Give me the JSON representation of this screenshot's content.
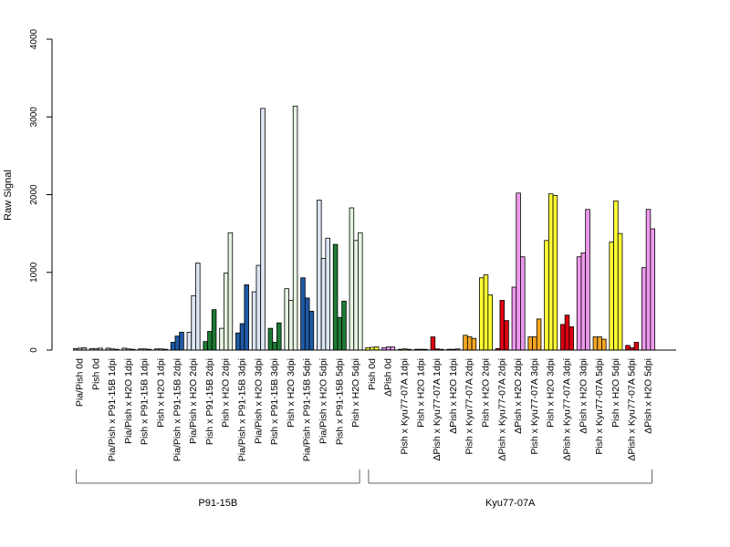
{
  "chart_data": {
    "type": "bar",
    "ylabel": "Raw Signal",
    "ylim": [
      0,
      4000
    ],
    "yticks": [
      0,
      1000,
      2000,
      3000,
      4000
    ],
    "grid": false,
    "legend": "none",
    "colors": {
      "gray": "#bebebe",
      "lightblue": "#dbe5f3",
      "darkblue": "#1f5aa6",
      "lightgreen": "#e6f4e2",
      "darkgreen": "#1e7a34",
      "yellow": "#ffff33",
      "orange": "#f5a623",
      "red": "#dd0011",
      "pink": "#ee99ee"
    },
    "categories": [
      {
        "label": "Pia/Pish 0d",
        "color": "gray",
        "values": [
          20,
          25,
          30
        ]
      },
      {
        "label": "Pish 0d",
        "color": "gray",
        "values": [
          20,
          20,
          25
        ]
      },
      {
        "label": "Pia/Pish x P91-15B 1dpi",
        "color": "gray",
        "values": [
          25,
          15,
          10
        ]
      },
      {
        "label": "Pia/Pish x H2O 1dpi",
        "color": "gray",
        "values": [
          25,
          15,
          10
        ]
      },
      {
        "label": "Pish x P91-15B 1dpi",
        "color": "gray",
        "values": [
          15,
          15,
          10
        ]
      },
      {
        "label": "Pish x H2O 1dpi",
        "color": "gray",
        "values": [
          15,
          15,
          10
        ]
      },
      {
        "label": "Pia/Pish x P91-15B 2dpi",
        "color": "darkblue",
        "values": [
          100,
          180,
          230
        ]
      },
      {
        "label": "Pia/Pish x H2O 2dpi",
        "color": "lightblue",
        "values": [
          230,
          700,
          1120
        ]
      },
      {
        "label": "Pish x P91-15B 2dpi",
        "color": "darkgreen",
        "values": [
          110,
          240,
          520
        ]
      },
      {
        "label": "Pish x H2O 2dpi",
        "color": "lightgreen",
        "values": [
          280,
          990,
          1510
        ]
      },
      {
        "label": "Pia/Pish x P91-15B 3dpi",
        "color": "darkblue",
        "values": [
          220,
          340,
          840
        ]
      },
      {
        "label": "Pia/Pish x H2O 3dpi",
        "color": "lightblue",
        "values": [
          750,
          1090,
          3110
        ]
      },
      {
        "label": "Pish x P91-15B 3dpi",
        "color": "darkgreen",
        "values": [
          280,
          100,
          350
        ]
      },
      {
        "label": "Pish x H2O 3dpi",
        "color": "lightgreen",
        "values": [
          790,
          640,
          3140
        ]
      },
      {
        "label": "Pia/Pish x P91-15B 5dpi",
        "color": "darkblue",
        "values": [
          930,
          670,
          500
        ]
      },
      {
        "label": "Pia/Pish x H2O 5dpi",
        "color": "lightblue",
        "values": [
          1930,
          1180,
          1440
        ]
      },
      {
        "label": "Pish x P91-15B 5dpi",
        "color": "darkgreen",
        "values": [
          1360,
          420,
          630
        ]
      },
      {
        "label": "Pish x H2O 5dpi",
        "color": "lightgreen",
        "values": [
          1830,
          1410,
          1510
        ]
      },
      {
        "label": "Pish 0d",
        "color": "yellow",
        "values": [
          30,
          35,
          40
        ]
      },
      {
        "label": "ΔPish 0d",
        "color": "pink",
        "values": [
          30,
          40,
          40
        ]
      },
      {
        "label": "Pish x Kyu77-07A 1dpi",
        "color": "orange",
        "values": [
          10,
          15,
          10
        ]
      },
      {
        "label": "Pish x H2O 1dpi",
        "color": "yellow",
        "values": [
          10,
          10,
          10
        ]
      },
      {
        "label": "ΔPish x Kyu77-07A 1dpi",
        "color": "red",
        "values": [
          170,
          15,
          10
        ]
      },
      {
        "label": "ΔPish x H2O 1dpi",
        "color": "pink",
        "values": [
          10,
          10,
          15
        ]
      },
      {
        "label": "Pish x Kyu77-07A 2dpi",
        "color": "orange",
        "values": [
          190,
          170,
          150
        ]
      },
      {
        "label": "Pish x H2O 2dpi",
        "color": "yellow",
        "values": [
          930,
          970,
          710
        ]
      },
      {
        "label": "ΔPish x Kyu77-07A 2dpi",
        "color": "red",
        "values": [
          20,
          640,
          380
        ]
      },
      {
        "label": "ΔPish x H2O 2dpi",
        "color": "pink",
        "values": [
          810,
          2020,
          1200
        ]
      },
      {
        "label": "Pish x Kyu77-07A 3dpi",
        "color": "orange",
        "values": [
          170,
          170,
          400
        ]
      },
      {
        "label": "Pish x H2O 3dpi",
        "color": "yellow",
        "values": [
          1410,
          2010,
          1990
        ]
      },
      {
        "label": "ΔPish x Kyu77-07A 3dpi",
        "color": "red",
        "values": [
          330,
          450,
          300
        ]
      },
      {
        "label": "ΔPish x H2O 3dpi",
        "color": "pink",
        "values": [
          1200,
          1250,
          1810
        ]
      },
      {
        "label": "Pish x Kyu77-07A 5dpi",
        "color": "orange",
        "values": [
          170,
          170,
          140
        ]
      },
      {
        "label": "Pish x H2O 5dpi",
        "color": "yellow",
        "values": [
          1390,
          1920,
          1500
        ]
      },
      {
        "label": "ΔPish x Kyu77-07A 5dpi",
        "color": "red",
        "values": [
          60,
          30,
          100
        ]
      },
      {
        "label": "ΔPish x H2O 5dpi",
        "color": "pink",
        "values": [
          1060,
          1810,
          1560
        ]
      }
    ],
    "groups": [
      {
        "label": "P91-15B",
        "first": 0,
        "last": 17
      },
      {
        "label": "Kyu77-07A",
        "first": 18,
        "last": 35
      }
    ]
  }
}
